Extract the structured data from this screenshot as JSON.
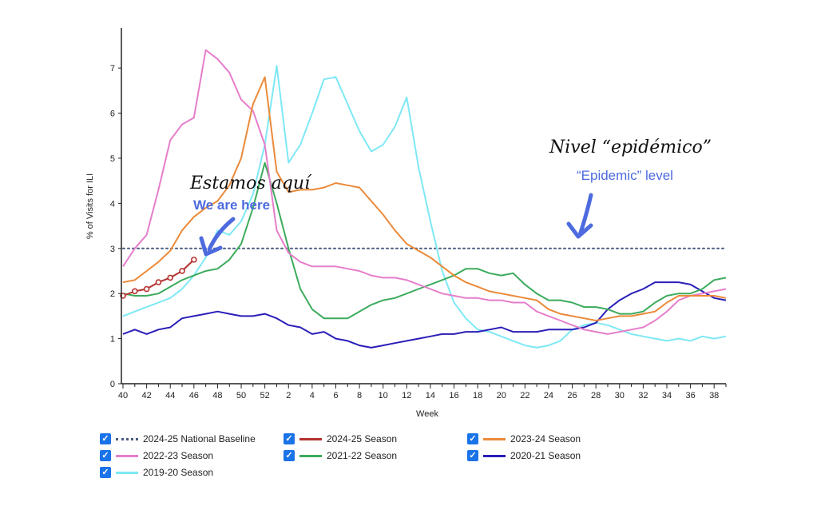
{
  "chart_data": {
    "type": "line",
    "xlabel": "Week",
    "ylabel": "% of Visits for ILI",
    "ylim": [
      0,
      7.8
    ],
    "x_tick_labels": [
      "40",
      "42",
      "44",
      "46",
      "48",
      "50",
      "52",
      "2",
      "4",
      "6",
      "8",
      "10",
      "12",
      "14",
      "16",
      "18",
      "20",
      "22",
      "24",
      "26",
      "28",
      "30",
      "32",
      "34",
      "36",
      "38"
    ],
    "y_ticks": [
      0,
      1,
      2,
      3,
      4,
      5,
      6,
      7
    ],
    "weeks": [
      40,
      41,
      42,
      43,
      44,
      45,
      46,
      47,
      48,
      49,
      50,
      51,
      52,
      1,
      2,
      3,
      4,
      5,
      6,
      7,
      8,
      9,
      10,
      11,
      12,
      13,
      14,
      15,
      16,
      17,
      18,
      19,
      20,
      21,
      22,
      23,
      24,
      25,
      26,
      27,
      28,
      29,
      30,
      31,
      32,
      33,
      34,
      35,
      36,
      37,
      38,
      39
    ],
    "baseline": {
      "name": "2024-25 National Baseline",
      "value": 3.0,
      "color": "#4a5c80"
    },
    "series": [
      {
        "name": "2019-20 Season",
        "color": "#7ee8f5",
        "values": [
          1.5,
          1.6,
          1.7,
          1.8,
          1.9,
          2.1,
          2.4,
          2.8,
          3.4,
          3.3,
          3.6,
          4.2,
          5.3,
          7.05,
          4.9,
          5.3,
          6.0,
          6.75,
          6.8,
          6.2,
          5.6,
          5.15,
          5.3,
          5.7,
          6.35,
          4.8,
          3.6,
          2.5,
          1.8,
          1.45,
          1.2,
          1.15,
          1.05,
          0.95,
          0.85,
          0.8,
          0.85,
          0.95,
          1.2,
          1.3,
          1.35,
          1.3,
          1.2,
          1.1,
          1.05,
          1.0,
          0.95,
          1.0,
          0.95,
          1.05,
          1.0,
          1.05
        ]
      },
      {
        "name": "2020-21 Season",
        "color": "#2a1fb8",
        "values": [
          1.1,
          1.2,
          1.1,
          1.2,
          1.25,
          1.45,
          1.5,
          1.55,
          1.6,
          1.55,
          1.5,
          1.5,
          1.55,
          1.45,
          1.3,
          1.25,
          1.1,
          1.15,
          1.0,
          0.95,
          0.85,
          0.8,
          0.85,
          0.9,
          0.95,
          1.0,
          1.05,
          1.1,
          1.1,
          1.15,
          1.15,
          1.2,
          1.25,
          1.15,
          1.15,
          1.15,
          1.2,
          1.2,
          1.2,
          1.25,
          1.35,
          1.65,
          1.85,
          2.0,
          2.1,
          2.25,
          2.25,
          2.25,
          2.2,
          2.05,
          1.9,
          1.85
        ]
      },
      {
        "name": "2021-22 Season",
        "color": "#3cab5c",
        "values": [
          2.0,
          1.95,
          1.95,
          2.0,
          2.15,
          2.3,
          2.4,
          2.5,
          2.55,
          2.75,
          3.1,
          3.9,
          4.9,
          4.0,
          3.0,
          2.1,
          1.65,
          1.45,
          1.45,
          1.45,
          1.6,
          1.75,
          1.85,
          1.9,
          2.0,
          2.1,
          2.2,
          2.3,
          2.4,
          2.55,
          2.55,
          2.45,
          2.4,
          2.45,
          2.2,
          2.0,
          1.85,
          1.85,
          1.8,
          1.7,
          1.7,
          1.65,
          1.55,
          1.55,
          1.6,
          1.8,
          1.95,
          2.0,
          2.0,
          2.1,
          2.3,
          2.35
        ]
      },
      {
        "name": "2022-23 Season",
        "color": "#e67ecb",
        "values": [
          2.6,
          3.0,
          3.3,
          4.3,
          5.4,
          5.75,
          5.9,
          7.4,
          7.2,
          6.9,
          6.3,
          6.05,
          5.3,
          3.4,
          2.9,
          2.7,
          2.6,
          2.6,
          2.6,
          2.55,
          2.5,
          2.4,
          2.35,
          2.35,
          2.3,
          2.2,
          2.1,
          2.0,
          1.95,
          1.9,
          1.9,
          1.85,
          1.85,
          1.8,
          1.8,
          1.6,
          1.5,
          1.4,
          1.3,
          1.2,
          1.15,
          1.1,
          1.15,
          1.2,
          1.25,
          1.4,
          1.6,
          1.85,
          1.95,
          2.0,
          2.05,
          2.1
        ]
      },
      {
        "name": "2023-24 Season",
        "color": "#eb8a3a",
        "values": [
          2.25,
          2.3,
          2.5,
          2.7,
          2.95,
          3.4,
          3.7,
          3.9,
          4.05,
          4.4,
          5.0,
          6.2,
          6.8,
          4.7,
          4.25,
          4.3,
          4.3,
          4.35,
          4.45,
          4.4,
          4.35,
          4.05,
          3.75,
          3.4,
          3.1,
          2.95,
          2.8,
          2.6,
          2.4,
          2.25,
          2.15,
          2.05,
          2.0,
          1.95,
          1.9,
          1.85,
          1.65,
          1.55,
          1.5,
          1.45,
          1.4,
          1.45,
          1.5,
          1.5,
          1.55,
          1.6,
          1.8,
          1.95,
          1.95,
          1.95,
          1.95,
          1.9
        ]
      },
      {
        "name": "2024-25 Season",
        "color": "#b5322f",
        "markers": true,
        "values": [
          1.95,
          2.05,
          2.1,
          2.25,
          2.35,
          2.5,
          2.75
        ]
      }
    ],
    "annotations": [
      {
        "text": "Estamos aquí",
        "style": "handwritten"
      },
      {
        "text": "We are here",
        "color": "#4d6bde"
      },
      {
        "text": "Nivel “epidémico”",
        "style": "handwritten"
      },
      {
        "text": "“Epidemic” level",
        "color": "#4d6bde"
      }
    ]
  },
  "legend": {
    "items": [
      {
        "label": "2024-25 National Baseline",
        "color": "#4a5c80",
        "style": "dotted"
      },
      {
        "label": "2024-25 Season",
        "color": "#b5322f",
        "style": "solid"
      },
      {
        "label": "2023-24 Season",
        "color": "#eb8a3a",
        "style": "solid"
      },
      {
        "label": "2022-23 Season",
        "color": "#e67ecb",
        "style": "solid"
      },
      {
        "label": "2021-22 Season",
        "color": "#3cab5c",
        "style": "solid"
      },
      {
        "label": "2020-21 Season",
        "color": "#2a1fb8",
        "style": "solid"
      },
      {
        "label": "2019-20 Season",
        "color": "#7ee8f5",
        "style": "solid"
      }
    ]
  }
}
